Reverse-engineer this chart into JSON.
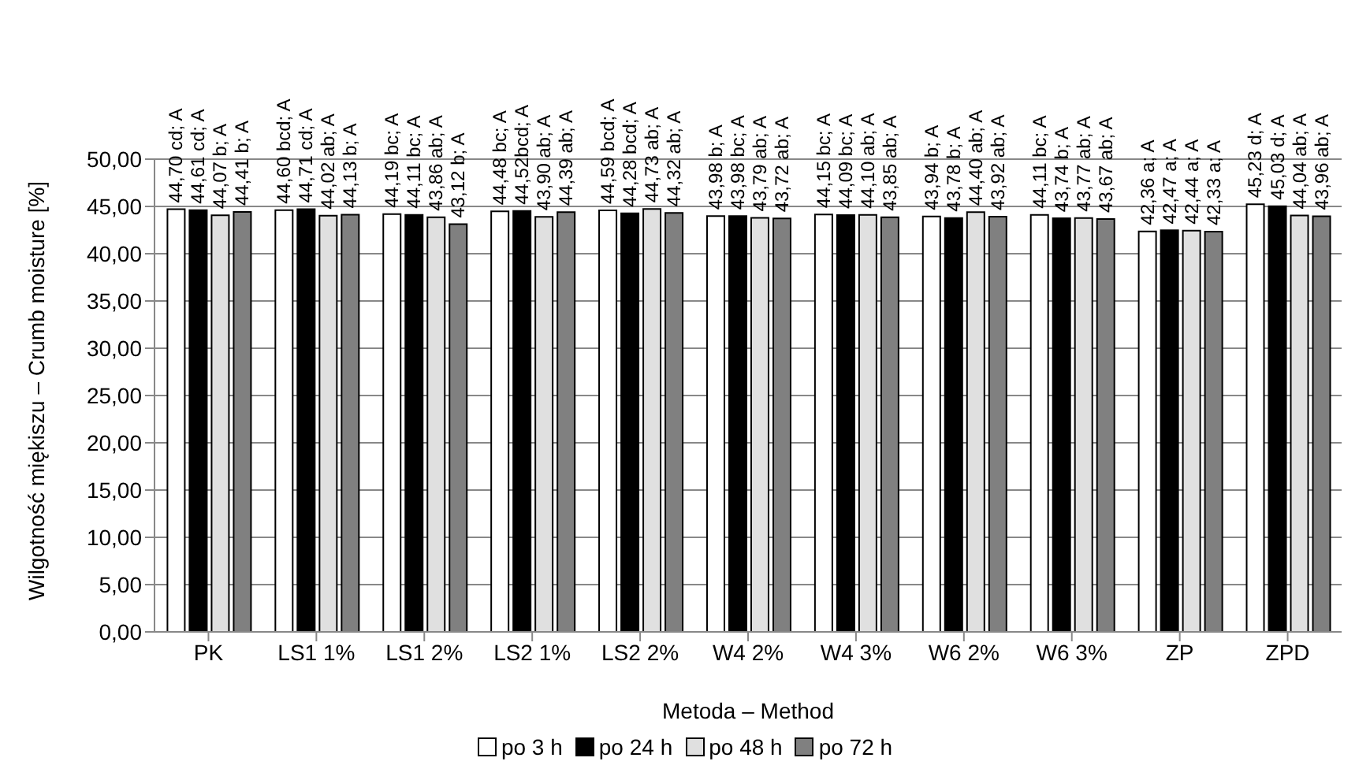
{
  "chart_data": {
    "type": "bar",
    "xlabel": "Metoda – Method",
    "ylabel": "Wilgotność miękiszu – Crumb moisture [%]",
    "categories": [
      "PK",
      "LS1 1%",
      "LS1 2%",
      "LS2 1%",
      "LS2 2%",
      "W4 2%",
      "W4 3%",
      "W6 2%",
      "W6 3%",
      "ZP",
      "ZPD"
    ],
    "series": [
      {
        "name": "po 3 h",
        "color": "#ffffff",
        "values": [
          44.7,
          44.6,
          44.19,
          44.48,
          44.59,
          43.98,
          44.15,
          43.94,
          44.11,
          42.36,
          45.23
        ],
        "value_labels": [
          "44,70 cd; A",
          "44,60 bcd; A",
          "44,19 bc; A",
          "44,48 bc; A",
          "44,59 bcd; A",
          "43,98 b; A",
          "44,15 bc; A",
          "43,94 b; A",
          "44,11 bc; A",
          "42,36 a; A",
          "45,23 d; A"
        ]
      },
      {
        "name": "po 24 h",
        "color": "#000000",
        "values": [
          44.61,
          44.71,
          44.11,
          44.52,
          44.28,
          43.98,
          44.09,
          43.78,
          43.74,
          42.47,
          45.03
        ],
        "value_labels": [
          "44,61 cd; A",
          "44,71 cd; A",
          "44,11 bc; A",
          "44,52bcd; A",
          "44,28 bcd; A",
          "43,98 bc; A",
          "44,09 bc; A",
          "43,78 b; A",
          "43,74 b; A",
          "42,47 a; A",
          "45,03 d; A"
        ]
      },
      {
        "name": "po 48 h",
        "color": "#e0e0e0",
        "values": [
          44.07,
          44.02,
          43.86,
          43.9,
          44.73,
          43.79,
          44.1,
          44.4,
          43.77,
          42.44,
          44.04
        ],
        "value_labels": [
          "44,07 b; A",
          "44,02 ab; A",
          "43,86 ab; A",
          "43,90 ab; A",
          "44,73 ab; A",
          "43,79 ab; A",
          "44,10 ab; A",
          "44,40 ab; A",
          "43,77 ab; A",
          "42,44 a; A",
          "44,04 ab; A"
        ]
      },
      {
        "name": "po 72 h",
        "color": "#808080",
        "values": [
          44.41,
          44.13,
          43.12,
          44.39,
          44.32,
          43.72,
          43.85,
          43.92,
          43.67,
          42.33,
          43.96
        ],
        "value_labels": [
          "44,41 b; A",
          "44,13 b; A",
          "43,12 b; A",
          "44,39 ab; A",
          "44,32 ab; A",
          "43,72 ab; A",
          "43,85 ab; A",
          "43,92 ab; A",
          "43,67 ab; A",
          "42,33 a; A",
          "43,96 ab; A"
        ]
      }
    ],
    "ylim": [
      0,
      50
    ],
    "yticks": [
      {
        "value": 0,
        "label": "0,00"
      },
      {
        "value": 5,
        "label": "5,00"
      },
      {
        "value": 10,
        "label": "10,00"
      },
      {
        "value": 15,
        "label": "15,00"
      },
      {
        "value": 20,
        "label": "20,00"
      },
      {
        "value": 25,
        "label": "25,00"
      },
      {
        "value": 30,
        "label": "30,00"
      },
      {
        "value": 35,
        "label": "35,00"
      },
      {
        "value": 40,
        "label": "40,00"
      },
      {
        "value": 45,
        "label": "45,00"
      },
      {
        "value": 50,
        "label": "50,00"
      }
    ],
    "grid": "y",
    "legend": "bottom"
  }
}
